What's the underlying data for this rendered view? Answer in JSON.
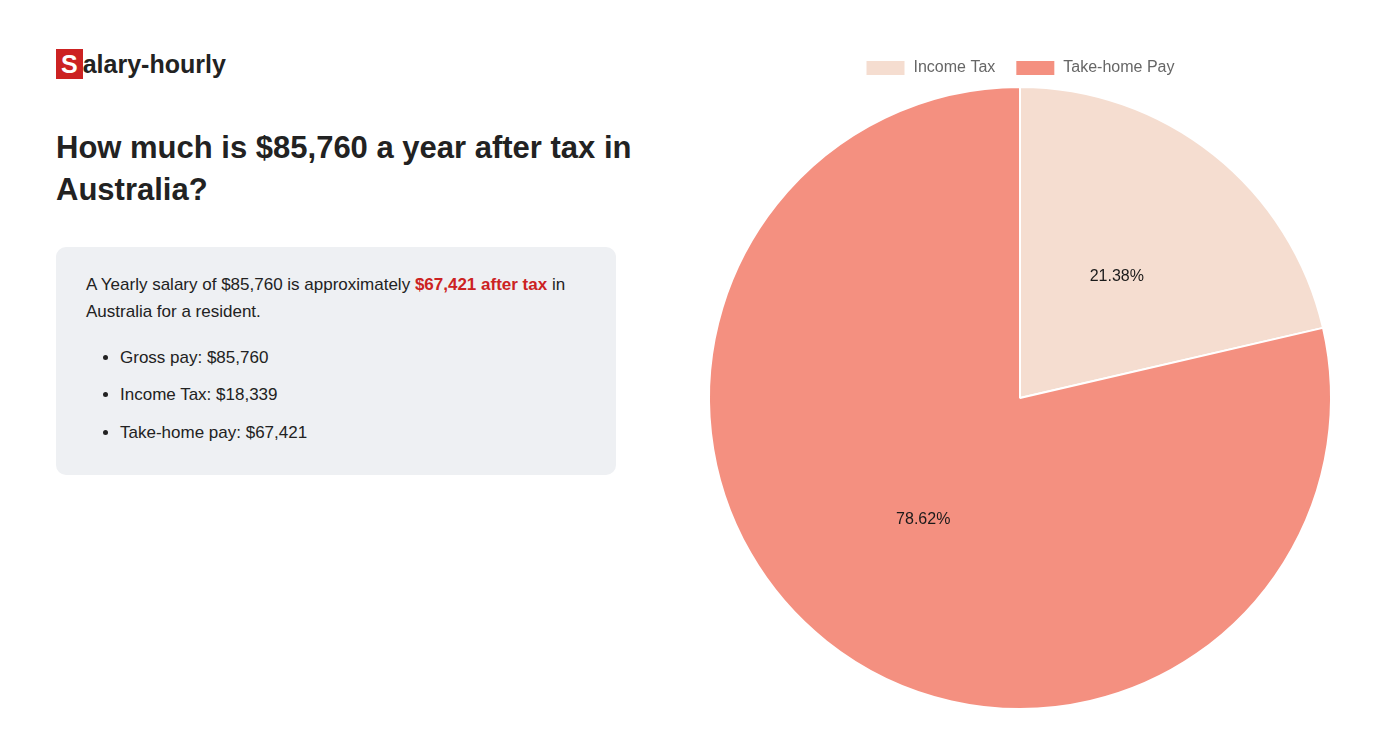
{
  "chart_data": {
    "type": "pie",
    "title": [
      "How much is $85,760 a year after tax in",
      "Australia?"
    ],
    "annotations": [
      [
        {
          "text": "S",
          "color": "#cc2222"
        },
        {
          "text": "alary-hourly"
        }
      ],
      [
        {
          "text": "A Yearly salary of $85,760 is approximately "
        },
        {
          "text": "$67,421 after tax",
          "color": "#cc2222"
        },
        {
          "text": " in"
        },
        {
          "text": " Australia for a resident."
        }
      ],
      [
        {
          "text": "Gross pay: $85,760"
        },
        {
          "text": "Income Tax: $18,339"
        },
        {
          "text": "Take-home pay: $67,421"
        }
      ]
    ],
    "categories": [
      "Income Tax",
      "Take-home Pay"
    ],
    "values": [
      21.38,
      78.62
    ],
    "value_labels": [
      "21.38%",
      "78.62%"
    ],
    "colors": [
      "#f5ddd0",
      "#f49080"
    ],
    "data_labels": true,
    "legend": "top"
  }
}
